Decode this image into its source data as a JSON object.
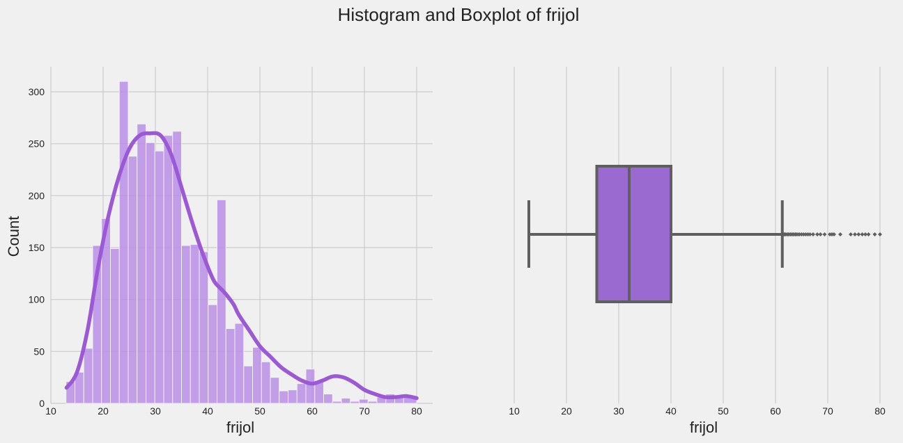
{
  "figure": {
    "title": "Histogram and Boxplot of frijol"
  },
  "chart_data": [
    {
      "type": "bar",
      "subtype": "histogram-with-kde",
      "xlabel": "frijol",
      "ylabel": "Count",
      "xlim": [
        10,
        80
      ],
      "ylim": [
        0,
        325
      ],
      "xticks": [
        10,
        20,
        30,
        40,
        50,
        60,
        70,
        80
      ],
      "yticks": [
        0,
        50,
        100,
        150,
        200,
        250,
        300
      ],
      "grid": true,
      "bar_color": "#b78be6",
      "line_color": "#9b59d6",
      "bins": [
        {
          "x0": 12.9,
          "x1": 14.6,
          "count": 21
        },
        {
          "x0": 14.6,
          "x1": 16.3,
          "count": 30
        },
        {
          "x0": 16.3,
          "x1": 18.0,
          "count": 53
        },
        {
          "x0": 18.0,
          "x1": 19.7,
          "count": 152
        },
        {
          "x0": 19.7,
          "x1": 21.4,
          "count": 178
        },
        {
          "x0": 21.4,
          "x1": 23.1,
          "count": 149
        },
        {
          "x0": 23.1,
          "x1": 24.8,
          "count": 310
        },
        {
          "x0": 24.8,
          "x1": 26.5,
          "count": 238
        },
        {
          "x0": 26.5,
          "x1": 28.2,
          "count": 269
        },
        {
          "x0": 28.2,
          "x1": 29.9,
          "count": 251
        },
        {
          "x0": 29.9,
          "x1": 31.6,
          "count": 243
        },
        {
          "x0": 31.6,
          "x1": 33.3,
          "count": 258
        },
        {
          "x0": 33.3,
          "x1": 35.0,
          "count": 262
        },
        {
          "x0": 35.0,
          "x1": 36.7,
          "count": 152
        },
        {
          "x0": 36.7,
          "x1": 38.4,
          "count": 153
        },
        {
          "x0": 38.4,
          "x1": 40.1,
          "count": 146
        },
        {
          "x0": 40.1,
          "x1": 41.8,
          "count": 95
        },
        {
          "x0": 41.8,
          "x1": 43.5,
          "count": 196
        },
        {
          "x0": 43.5,
          "x1": 45.2,
          "count": 72
        },
        {
          "x0": 45.2,
          "x1": 46.9,
          "count": 77
        },
        {
          "x0": 46.9,
          "x1": 48.6,
          "count": 36
        },
        {
          "x0": 48.6,
          "x1": 50.3,
          "count": 54
        },
        {
          "x0": 50.3,
          "x1": 52.0,
          "count": 40
        },
        {
          "x0": 52.0,
          "x1": 53.7,
          "count": 25
        },
        {
          "x0": 53.7,
          "x1": 55.4,
          "count": 12
        },
        {
          "x0": 55.4,
          "x1": 57.1,
          "count": 13
        },
        {
          "x0": 57.1,
          "x1": 58.8,
          "count": 19
        },
        {
          "x0": 58.8,
          "x1": 60.5,
          "count": 33
        },
        {
          "x0": 60.5,
          "x1": 62.2,
          "count": 22
        },
        {
          "x0": 62.2,
          "x1": 63.9,
          "count": 9
        },
        {
          "x0": 63.9,
          "x1": 65.6,
          "count": 2
        },
        {
          "x0": 65.6,
          "x1": 67.3,
          "count": 5
        },
        {
          "x0": 67.3,
          "x1": 69.0,
          "count": 2
        },
        {
          "x0": 69.0,
          "x1": 70.7,
          "count": 4
        },
        {
          "x0": 70.7,
          "x1": 72.4,
          "count": 2
        },
        {
          "x0": 72.4,
          "x1": 74.1,
          "count": 6
        },
        {
          "x0": 74.1,
          "x1": 75.8,
          "count": 9
        },
        {
          "x0": 75.8,
          "x1": 77.5,
          "count": 7
        },
        {
          "x0": 77.5,
          "x1": 80.0,
          "count": 6
        }
      ],
      "kde": {
        "x": [
          13,
          15,
          17,
          19,
          21,
          23,
          25,
          27,
          29,
          31,
          33,
          35,
          37,
          39,
          41,
          42,
          43,
          44,
          45,
          46,
          48,
          50,
          52,
          54,
          56,
          58,
          60,
          62,
          64,
          66,
          68,
          70,
          72,
          74,
          76,
          78,
          80
        ],
        "y": [
          15,
          30,
          70,
          130,
          180,
          218,
          245,
          258,
          260,
          258,
          240,
          208,
          175,
          145,
          120,
          113,
          108,
          102,
          95,
          85,
          70,
          55,
          45,
          35,
          28,
          22,
          19,
          22,
          26,
          25,
          20,
          13,
          9,
          6,
          6,
          7,
          5
        ]
      }
    },
    {
      "type": "box",
      "xlabel": "frijol",
      "xlim": [
        10,
        80
      ],
      "xticks": [
        10,
        20,
        30,
        40,
        50,
        60,
        70,
        80
      ],
      "grid": true,
      "box_color": "#9b6ad0",
      "edge_color": "#5f5f5f",
      "stats": {
        "whisker_low": 12.8,
        "q1": 25.8,
        "median": 32.0,
        "q3": 40.0,
        "whisker_high": 61.3
      },
      "outliers": [
        61.6,
        61.8,
        62.0,
        62.3,
        62.5,
        62.8,
        63.0,
        63.3,
        63.5,
        63.8,
        64.0,
        64.3,
        64.6,
        65.0,
        65.4,
        65.8,
        66.2,
        66.6,
        67.2,
        68.0,
        68.6,
        69.4,
        70.4,
        70.8,
        71.2,
        72.4,
        74.4,
        75.2,
        75.9,
        76.6,
        77.2,
        77.8,
        79.0,
        80.0
      ]
    }
  ]
}
